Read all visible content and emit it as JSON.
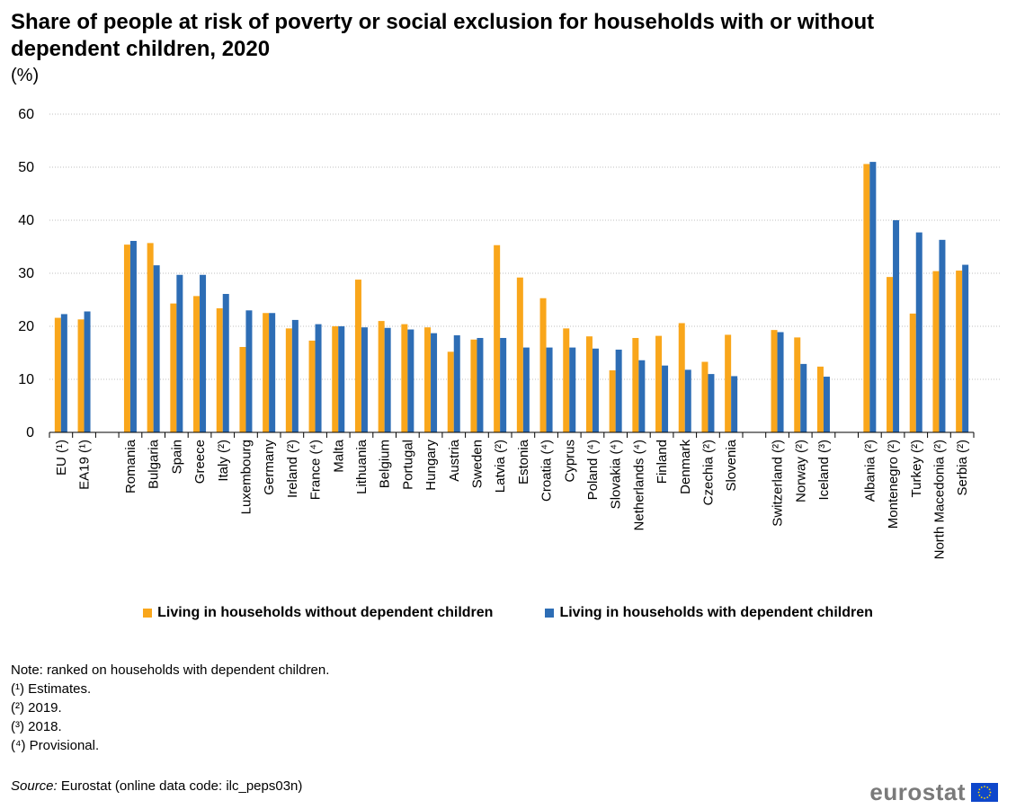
{
  "header": {
    "title": "Share of people at risk of poverty or social exclusion for households with or without dependent children, 2020",
    "unit": "(%)"
  },
  "colors": {
    "without": "#f9a61b",
    "with": "#2d6db5",
    "grid": "#bfbfbf"
  },
  "chart_data": {
    "type": "bar",
    "title": "Share of people at risk of poverty or social exclusion for households with or without dependent children, 2020",
    "ylabel": "(%)",
    "ylim": [
      0,
      60
    ],
    "yticks": [
      0,
      10,
      20,
      30,
      40,
      50,
      60
    ],
    "grid": true,
    "legend_position": "bottom",
    "groups": [
      [
        "EU (¹)",
        "EA19 (¹)"
      ],
      [
        "Romania",
        "Bulgaria",
        "Spain",
        "Greece",
        "Italy (²)",
        "Luxembourg",
        "Germany",
        "Ireland (²)",
        "France (⁴)",
        "Malta",
        "Lithuania",
        "Belgium",
        "Portugal",
        "Hungary",
        "Austria",
        "Sweden",
        "Latvia (²)",
        "Estonia",
        "Croatia (⁴)",
        "Cyprus",
        "Poland (⁴)",
        "Slovakia (⁴)",
        "Netherlands (⁴)",
        "Finland",
        "Denmark",
        "Czechia (²)",
        "Slovenia"
      ],
      [
        "Switzerland (²)",
        "Norway (²)",
        "Iceland (³)"
      ],
      [
        "Albania (²)",
        "Montenegro (²)",
        "Turkey (²)",
        "North Macedonia (²)",
        "Serbia (²)"
      ]
    ],
    "categories": [
      "EU (¹)",
      "EA19 (¹)",
      "Romania",
      "Bulgaria",
      "Spain",
      "Greece",
      "Italy (²)",
      "Luxembourg",
      "Germany",
      "Ireland (²)",
      "France (⁴)",
      "Malta",
      "Lithuania",
      "Belgium",
      "Portugal",
      "Hungary",
      "Austria",
      "Sweden",
      "Latvia (²)",
      "Estonia",
      "Croatia (⁴)",
      "Cyprus",
      "Poland (⁴)",
      "Slovakia (⁴)",
      "Netherlands (⁴)",
      "Finland",
      "Denmark",
      "Czechia (²)",
      "Slovenia",
      "Switzerland (²)",
      "Norway (²)",
      "Iceland (³)",
      "Albania (²)",
      "Montenegro (²)",
      "Turkey (²)",
      "North Macedonia (²)",
      "Serbia (²)"
    ],
    "series": [
      {
        "name": "Living in households without dependent children",
        "values": [
          21.6,
          21.3,
          35.4,
          35.7,
          24.3,
          25.7,
          23.4,
          16.1,
          22.5,
          19.6,
          17.3,
          20.0,
          28.8,
          21.0,
          20.4,
          19.8,
          15.2,
          17.5,
          35.3,
          29.2,
          25.3,
          19.6,
          18.1,
          11.7,
          17.8,
          18.2,
          20.6,
          13.3,
          18.4,
          19.3,
          17.9,
          12.4,
          50.6,
          29.3,
          22.4,
          30.4,
          30.5
        ]
      },
      {
        "name": "Living in households with dependent children",
        "values": [
          22.3,
          22.8,
          36.1,
          31.5,
          29.7,
          29.7,
          26.1,
          23.0,
          22.5,
          21.2,
          20.4,
          20.0,
          19.8,
          19.7,
          19.4,
          18.7,
          18.3,
          17.8,
          17.8,
          16.0,
          16.0,
          16.0,
          15.8,
          15.6,
          13.6,
          12.6,
          11.8,
          11.0,
          10.6,
          18.9,
          12.9,
          10.5,
          51.0,
          40.0,
          37.7,
          36.3,
          31.6
        ]
      }
    ]
  },
  "legend": {
    "without_label": "Living in households without dependent children",
    "with_label": "Living in households with dependent children"
  },
  "notes": {
    "ranking": "Note: ranked on households with dependent children.",
    "n1": "(¹) Estimates.",
    "n2": "(²) 2019.",
    "n3": "(³) 2018.",
    "n4": "(⁴) Provisional."
  },
  "source": {
    "label": "Source:",
    "text": " Eurostat (online data code: ilc_peps03n)"
  },
  "logo": {
    "text": "eurostat",
    "flag_icon": "eu-flag-icon"
  }
}
